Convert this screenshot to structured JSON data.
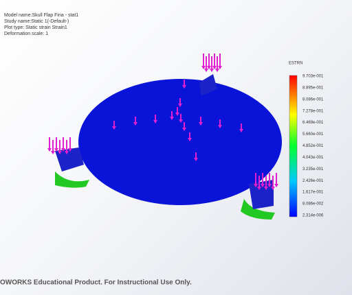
{
  "info": {
    "lines": [
      "Model name:Skull Flap Fina - stat1",
      "Study name:Static 1(-Default-)",
      "Plot type: Static strain Strain1",
      "Deformation scale: 1"
    ]
  },
  "legend": {
    "title": "ESTRN",
    "labels": [
      "9.703e-001",
      "8.895e-001",
      "8.086e-001",
      "7.278e-001",
      "6.469e-001",
      "5.660e-001",
      "4.852e-001",
      "4.043e-001",
      "3.235e-001",
      "2.426e-001",
      "1.617e-001",
      "8.086e-002",
      "2.314e-006"
    ]
  },
  "footer": {
    "text": "OWORKS Educational Product. For Instructional Use Only."
  }
}
